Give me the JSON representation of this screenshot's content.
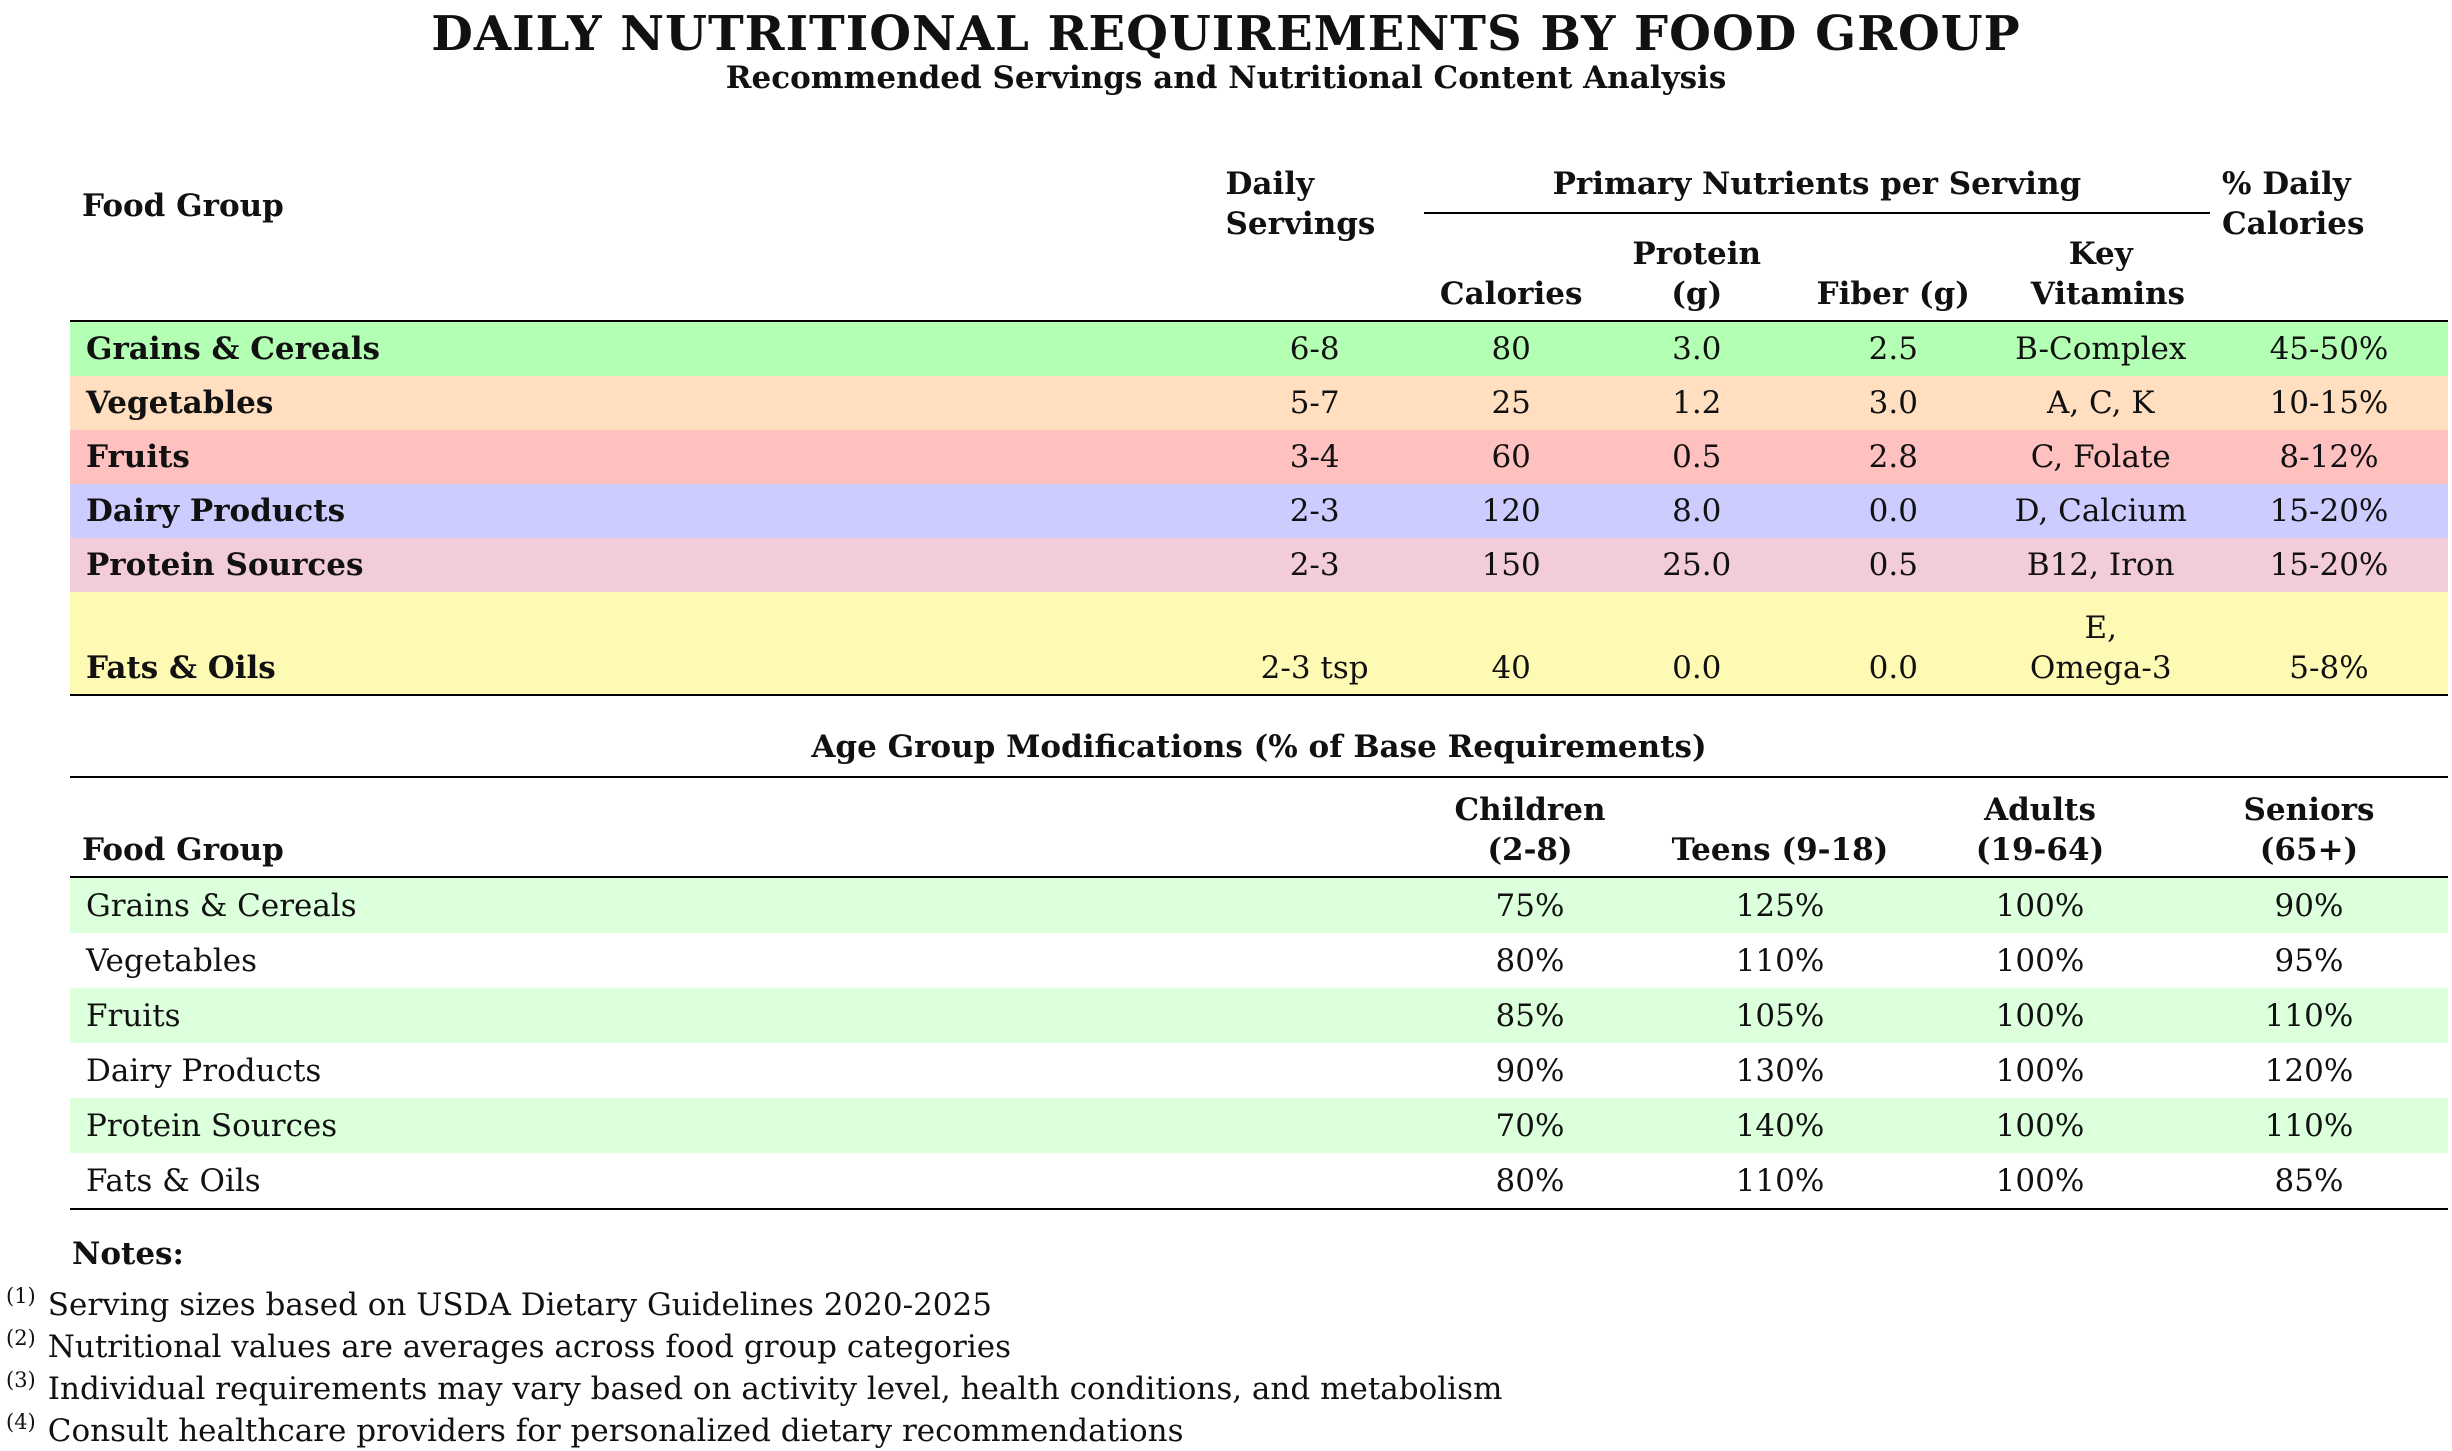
{
  "title": "DAILY NUTRITIONAL REQUIREMENTS BY FOOD GROUP",
  "subtitle": "Recommended Servings and Nutritional Content Analysis",
  "table1": {
    "headers": {
      "food_group": "Food Group",
      "daily_servings": "Daily Servings",
      "primary_nutrients": "Primary Nutrients per Serving",
      "calories": "Calories",
      "protein": "Protein (g)",
      "fiber": "Fiber (g)",
      "key_vitamins": "Key Vitamins",
      "daily_calories": "% Daily Calories"
    },
    "rows": [
      {
        "group": "Grains & Cereals",
        "servings": "6-8",
        "calories": "80",
        "protein": "3.0",
        "fiber": "2.5",
        "vitamins": "B-Complex",
        "pct": "45-50%",
        "color": "#b3ffb3"
      },
      {
        "group": "Vegetables",
        "servings": "5-7",
        "calories": "25",
        "protein": "1.2",
        "fiber": "3.0",
        "vitamins": "A, C, K",
        "pct": "10-15%",
        "color": "#ffdfc0"
      },
      {
        "group": "Fruits",
        "servings": "3-4",
        "calories": "60",
        "protein": "0.5",
        "fiber": "2.8",
        "vitamins": "C, Folate",
        "pct": "8-12%",
        "color": "#ffc0c0"
      },
      {
        "group": "Dairy Products",
        "servings": "2-3",
        "calories": "120",
        "protein": "8.0",
        "fiber": "0.0",
        "vitamins": "D, Calcium",
        "pct": "15-20%",
        "color": "#ccccff"
      },
      {
        "group": "Protein Sources",
        "servings": "2-3",
        "calories": "150",
        "protein": "25.0",
        "fiber": "0.5",
        "vitamins": "B12, Iron",
        "pct": "15-20%",
        "color": "#f2ccdb"
      },
      {
        "group": "Fats & Oils",
        "servings": "2-3 tsp",
        "calories": "40",
        "protein": "0.0",
        "fiber": "0.0",
        "vitamins_line1": "E,",
        "vitamins_line2": "Omega-3",
        "pct": "5-8%",
        "color": "#fffab3"
      }
    ]
  },
  "table2": {
    "caption": "Age Group Modifications (% of Base Requirements)",
    "headers": {
      "food_group": "Food Group",
      "children_line1": "Children",
      "children_line2": "(2-8)",
      "teens": "Teens (9-18)",
      "adults_line1": "Adults",
      "adults_line2": "(19-64)",
      "seniors_line1": "Seniors",
      "seniors_line2": "(65+)"
    },
    "stripe_color": "#dcffdc",
    "rows": [
      {
        "group": "Grains & Cereals",
        "children": "75%",
        "teens": "125%",
        "adults": "100%",
        "seniors": "90%"
      },
      {
        "group": "Vegetables",
        "children": "80%",
        "teens": "110%",
        "adults": "100%",
        "seniors": "95%"
      },
      {
        "group": "Fruits",
        "children": "85%",
        "teens": "105%",
        "adults": "100%",
        "seniors": "110%"
      },
      {
        "group": "Dairy Products",
        "children": "90%",
        "teens": "130%",
        "adults": "100%",
        "seniors": "120%"
      },
      {
        "group": "Protein Sources",
        "children": "70%",
        "teens": "140%",
        "adults": "100%",
        "seniors": "110%"
      },
      {
        "group": "Fats & Oils",
        "children": "80%",
        "teens": "110%",
        "adults": "100%",
        "seniors": "85%"
      }
    ]
  },
  "notes": {
    "title": "Notes:",
    "items": [
      {
        "mark": "(1)",
        "text": "Serving sizes based on USDA Dietary Guidelines 2020-2025"
      },
      {
        "mark": "(2)",
        "text": "Nutritional values are averages across food group categories"
      },
      {
        "mark": "(3)",
        "text": "Individual requirements may vary based on activity level, health conditions, and metabolism"
      },
      {
        "mark": "(4)",
        "text": "Consult healthcare providers for personalized dietary recommendations"
      }
    ]
  }
}
